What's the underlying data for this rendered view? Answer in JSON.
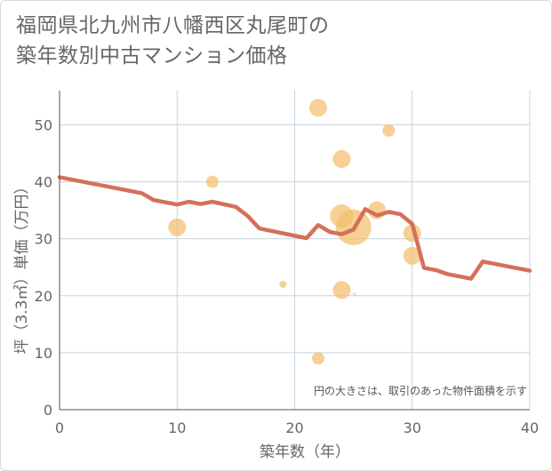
{
  "title": {
    "line1": "福岡県北九州市八幡西区丸尾町の",
    "line2": "築年数別中古マンション価格"
  },
  "chart_data": {
    "type": "scatter",
    "xlabel": "築年数（年）",
    "ylabel": "坪（3.3㎡）単価（万円）",
    "xlim": [
      0,
      40
    ],
    "ylim": [
      0,
      56
    ],
    "xticks": [
      0,
      10,
      20,
      30,
      40
    ],
    "yticks": [
      0,
      10,
      20,
      30,
      40,
      50
    ],
    "grid": true,
    "note": "円の大きさは、取引のあった物件面積を示す",
    "colors": {
      "scatter": "#f2be6b",
      "line": "#d4705a",
      "grid": "#c8d4e0"
    },
    "scatter": [
      {
        "x": 10,
        "y": 32,
        "size": 10
      },
      {
        "x": 13,
        "y": 40,
        "size": 7
      },
      {
        "x": 19,
        "y": 22,
        "size": 4
      },
      {
        "x": 22,
        "y": 53,
        "size": 10
      },
      {
        "x": 22,
        "y": 9,
        "size": 7
      },
      {
        "x": 24,
        "y": 44,
        "size": 10
      },
      {
        "x": 24,
        "y": 34,
        "size": 13
      },
      {
        "x": 24,
        "y": 21,
        "size": 10
      },
      {
        "x": 25,
        "y": 32,
        "size": 20
      },
      {
        "x": 25.1,
        "y": 20.3,
        "size": 1.5
      },
      {
        "x": 27,
        "y": 35,
        "size": 10
      },
      {
        "x": 28,
        "y": 49,
        "size": 7
      },
      {
        "x": 30,
        "y": 31,
        "size": 10
      },
      {
        "x": 30,
        "y": 27,
        "size": 10
      }
    ],
    "line": [
      {
        "x": 0,
        "y": 40.8
      },
      {
        "x": 7,
        "y": 38
      },
      {
        "x": 8,
        "y": 36.8
      },
      {
        "x": 10,
        "y": 36
      },
      {
        "x": 11,
        "y": 36.5
      },
      {
        "x": 12,
        "y": 36.1
      },
      {
        "x": 13,
        "y": 36.5
      },
      {
        "x": 15,
        "y": 35.6
      },
      {
        "x": 16,
        "y": 34
      },
      {
        "x": 17,
        "y": 31.8
      },
      {
        "x": 21,
        "y": 30.1
      },
      {
        "x": 22,
        "y": 32.4
      },
      {
        "x": 23,
        "y": 31.2
      },
      {
        "x": 24,
        "y": 30.8
      },
      {
        "x": 25,
        "y": 31.6
      },
      {
        "x": 26,
        "y": 35.2
      },
      {
        "x": 27,
        "y": 34.1
      },
      {
        "x": 28,
        "y": 34.7
      },
      {
        "x": 29,
        "y": 34.3
      },
      {
        "x": 30,
        "y": 32.6
      },
      {
        "x": 31,
        "y": 24.9
      },
      {
        "x": 32,
        "y": 24.5
      },
      {
        "x": 33,
        "y": 23.8
      },
      {
        "x": 35,
        "y": 23
      },
      {
        "x": 36,
        "y": 26
      },
      {
        "x": 40,
        "y": 24.4
      }
    ]
  }
}
